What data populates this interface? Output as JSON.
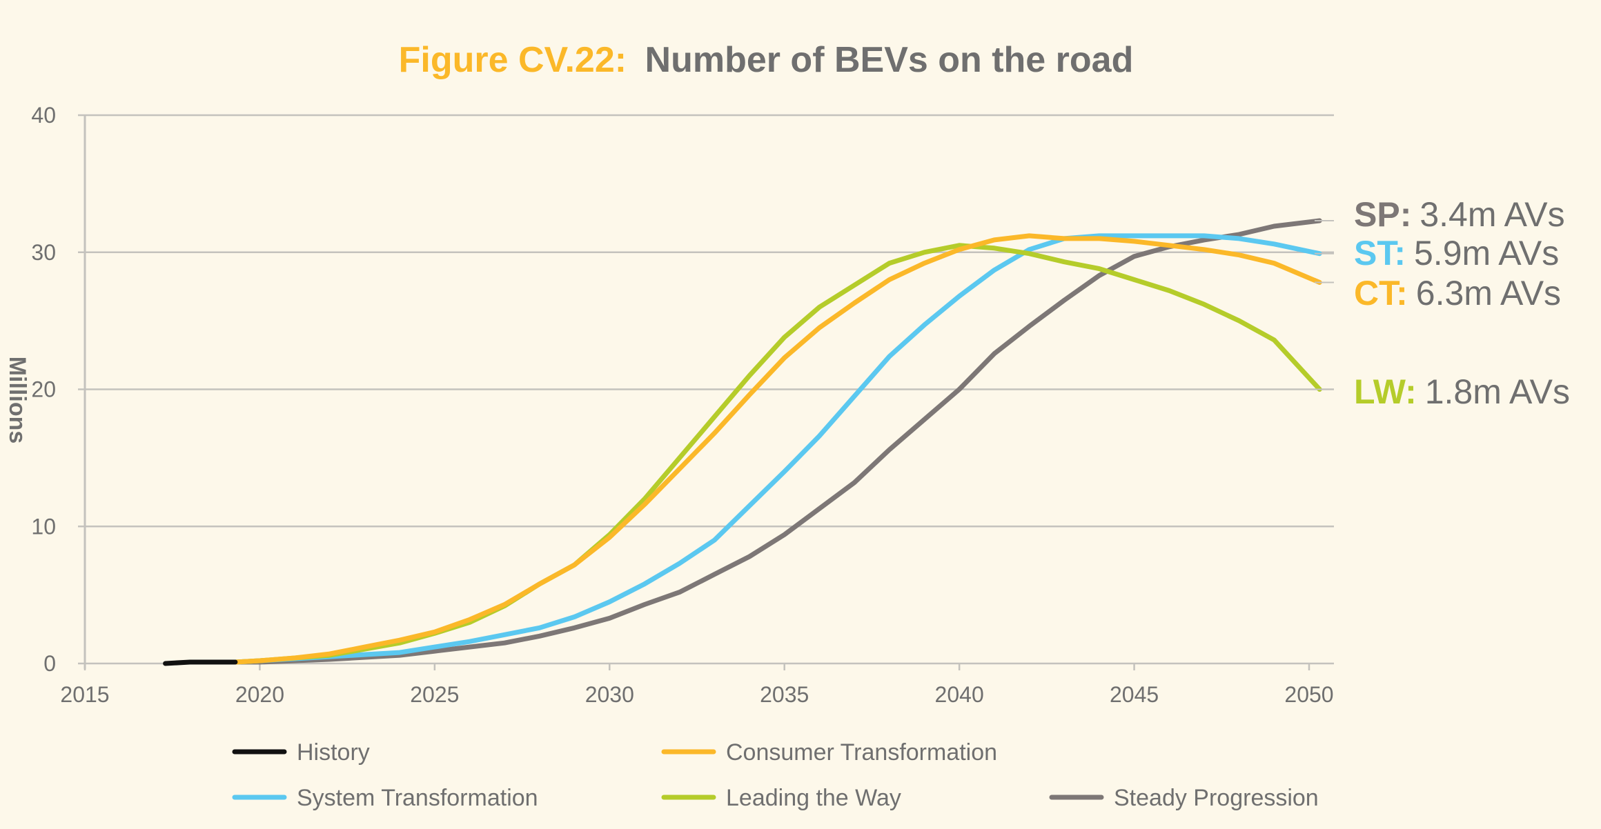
{
  "chart_data": {
    "type": "line",
    "title_prefix": "Figure CV.22:",
    "title": "Number of BEVs on the road",
    "ylabel": "Millions",
    "xlabel": "",
    "xlim": [
      2015,
      2050
    ],
    "ylim": [
      0,
      40
    ],
    "x_ticks": [
      "2015",
      "2020",
      "2025",
      "2030",
      "2035",
      "2040",
      "2045",
      "2050"
    ],
    "y_ticks": [
      "0",
      "10",
      "20",
      "30",
      "40"
    ],
    "grid": "horizontal",
    "legend_position": "bottom",
    "colors": {
      "title_prefix": "#fbb829",
      "text": "#6f6f6f",
      "grid": "#c4c2bd"
    },
    "series": [
      {
        "name": "History",
        "color": "#111111",
        "x": [
          2017.3,
          2018,
          2019.3
        ],
        "y": [
          0,
          0.1,
          0.1
        ]
      },
      {
        "name": "Consumer Transformation",
        "color": "#fbb829",
        "x": [
          2019.3,
          2020,
          2021,
          2022,
          2023,
          2024,
          2025,
          2026,
          2027,
          2028,
          2029,
          2030,
          2031,
          2032,
          2033,
          2034,
          2035,
          2036,
          2037,
          2038,
          2039,
          2040,
          2041,
          2042,
          2043,
          2044,
          2045,
          2046,
          2047,
          2048,
          2049,
          2050.3
        ],
        "y": [
          0.1,
          0.2,
          0.4,
          0.7,
          1.2,
          1.7,
          2.3,
          3.2,
          4.3,
          5.8,
          7.2,
          9.2,
          11.6,
          14.2,
          16.8,
          19.6,
          22.3,
          24.5,
          26.3,
          28,
          29.2,
          30.2,
          30.9,
          31.2,
          31,
          31,
          30.8,
          30.5,
          30.2,
          29.8,
          29.2,
          27.8
        ]
      },
      {
        "name": "System Transformation",
        "color": "#5bc8f0",
        "x": [
          2019.3,
          2020,
          2022,
          2024,
          2025,
          2026,
          2027,
          2028,
          2029,
          2030,
          2031,
          2032,
          2033,
          2034,
          2035,
          2036,
          2037,
          2038,
          2039,
          2040,
          2041,
          2042,
          2043,
          2044,
          2045,
          2046,
          2047,
          2048,
          2049,
          2050.3
        ],
        "y": [
          0.1,
          0.2,
          0.5,
          0.8,
          1.2,
          1.6,
          2.1,
          2.6,
          3.4,
          4.5,
          5.8,
          7.3,
          9,
          11.5,
          14,
          16.6,
          19.5,
          22.4,
          24.7,
          26.8,
          28.7,
          30.2,
          31,
          31.2,
          31.2,
          31.2,
          31.2,
          31,
          30.6,
          29.9
        ]
      },
      {
        "name": "Leading the Way",
        "color": "#b5cc2a",
        "x": [
          2019.3,
          2020,
          2022,
          2024,
          2025,
          2026,
          2027,
          2028,
          2029,
          2030,
          2031,
          2032,
          2033,
          2034,
          2035,
          2036,
          2037,
          2038,
          2039,
          2040,
          2041,
          2042,
          2043,
          2044,
          2045,
          2046,
          2047,
          2048,
          2049,
          2050.3
        ],
        "y": [
          0.1,
          0.2,
          0.6,
          1.5,
          2.2,
          3,
          4.2,
          5.8,
          7.2,
          9.4,
          12,
          15,
          18,
          21,
          23.8,
          26,
          27.6,
          29.2,
          30,
          30.5,
          30.3,
          29.9,
          29.3,
          28.8,
          28,
          27.2,
          26.2,
          25,
          23.6,
          20
        ]
      },
      {
        "name": "Steady Progression",
        "color": "#7d7776",
        "x": [
          2019.3,
          2020,
          2022,
          2024,
          2025,
          2026,
          2027,
          2028,
          2029,
          2030,
          2031,
          2032,
          2033,
          2034,
          2035,
          2036,
          2037,
          2038,
          2039,
          2040,
          2041,
          2042,
          2043,
          2044,
          2045,
          2046,
          2047,
          2048,
          2049,
          2050.3
        ],
        "y": [
          0.1,
          0.1,
          0.3,
          0.6,
          0.9,
          1.2,
          1.5,
          2,
          2.6,
          3.3,
          4.3,
          5.2,
          6.5,
          7.8,
          9.4,
          11.3,
          13.2,
          15.6,
          17.8,
          20,
          22.6,
          24.6,
          26.5,
          28.3,
          29.7,
          30.4,
          30.9,
          31.3,
          31.9,
          32.3
        ]
      }
    ],
    "annotations": [
      {
        "key": "SP:",
        "text": "3.4m AVs",
        "color": "#7d7776",
        "y": 32.3
      },
      {
        "key": "ST:",
        "text": "5.9m AVs",
        "color": "#5bc8f0",
        "y": 29.9
      },
      {
        "key": "CT:",
        "text": "6.3m AVs",
        "color": "#fbb829",
        "y": 27.8
      },
      {
        "key": "LW:",
        "text": "1.8m AVs",
        "color": "#b5cc2a",
        "y": 20
      }
    ]
  }
}
